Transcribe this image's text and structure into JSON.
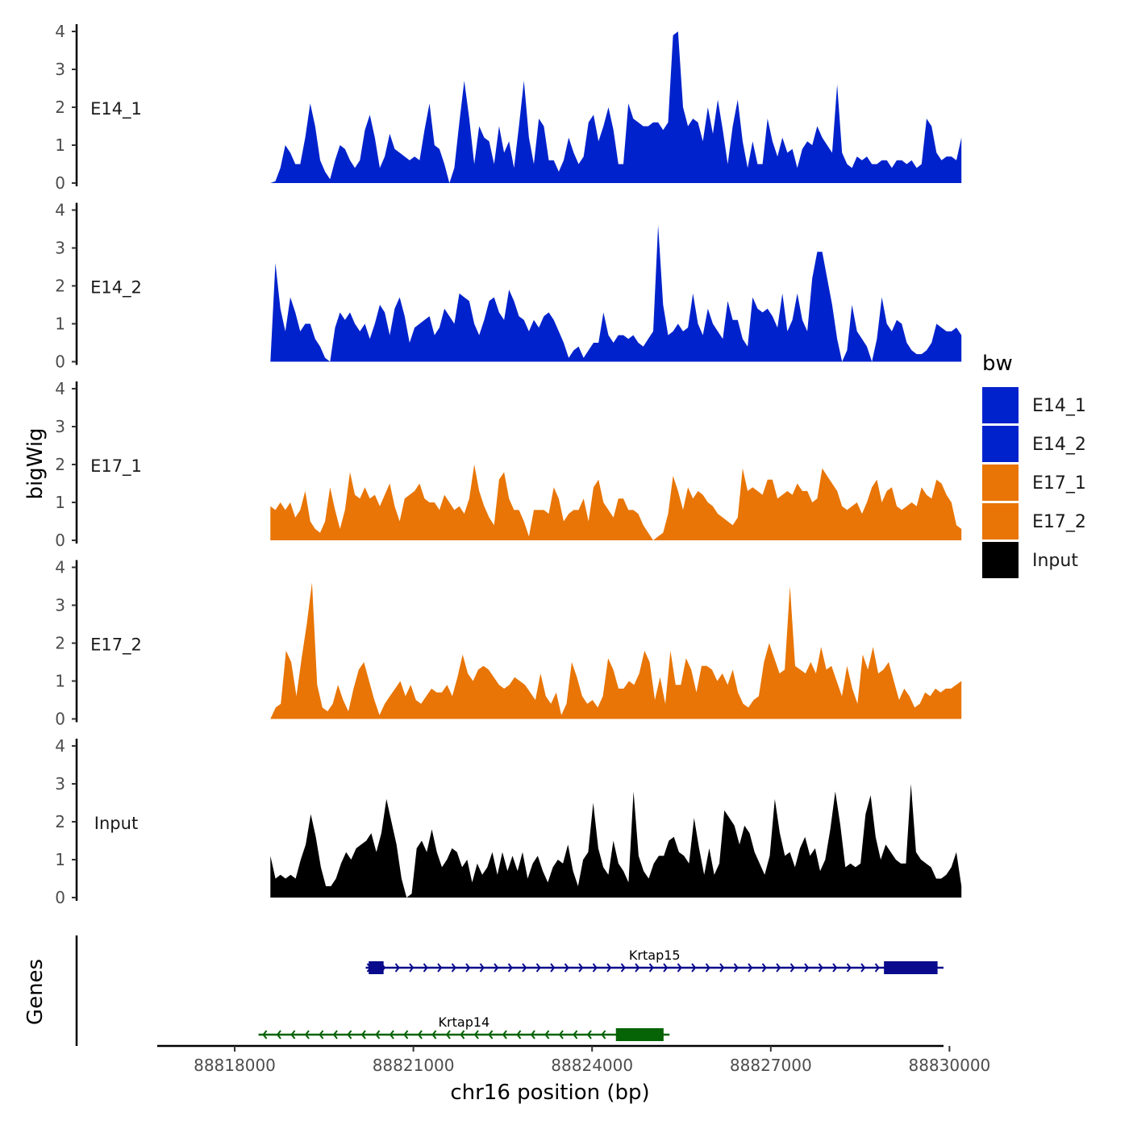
{
  "chart_data": {
    "type": "area",
    "y_axis_title": "bigWig",
    "x_axis_title": "chr16 position (bp)",
    "genes_axis_title": "Genes",
    "xlim": [
      88816700,
      88829900
    ],
    "x_ticks": [
      88818000,
      88821000,
      88824000,
      88827000,
      88830000
    ],
    "x_tick_labels": [
      "88818000",
      "88821000",
      "88824000",
      "88827000",
      "88830000"
    ],
    "signal_x_range": [
      88818600,
      88830200
    ],
    "ylim": [
      0,
      4
    ],
    "y_ticks": [
      0,
      1,
      2,
      3,
      4
    ],
    "y_tick_labels": [
      "0",
      "1",
      "2",
      "3",
      "4"
    ],
    "legend": {
      "title": "bw",
      "entries": [
        {
          "label": "E14_1",
          "color": "#0022cc"
        },
        {
          "label": "E14_2",
          "color": "#0022cc"
        },
        {
          "label": "E17_1",
          "color": "#e87505"
        },
        {
          "label": "E17_2",
          "color": "#e87505"
        },
        {
          "label": "Input",
          "color": "#000000"
        }
      ]
    },
    "series": [
      {
        "name": "E14_1",
        "color": "#0022cc",
        "values": [
          0,
          0.05,
          0.4,
          1,
          0.8,
          0.5,
          0.5,
          1.2,
          2.1,
          1.5,
          0.6,
          0.3,
          0.1,
          0.6,
          1,
          0.9,
          0.6,
          0.4,
          0.6,
          1.4,
          1.8,
          1.2,
          0.4,
          0.7,
          1.3,
          0.9,
          0.8,
          0.7,
          0.6,
          0.7,
          0.6,
          1.4,
          2.1,
          1,
          0.9,
          0.5,
          0,
          0.4,
          1.6,
          2.7,
          1.7,
          0.5,
          1.5,
          1.2,
          1.1,
          0.5,
          1.5,
          0.8,
          1.1,
          0.4,
          1.5,
          2.7,
          1.2,
          0.5,
          1.7,
          1.5,
          0.6,
          0.6,
          0.3,
          0.6,
          1.2,
          0.8,
          0.5,
          0.7,
          1.6,
          1.8,
          1.1,
          1.5,
          2,
          1.4,
          0.5,
          0.5,
          2.1,
          1.7,
          1.6,
          1.5,
          1.5,
          1.6,
          1.6,
          1.4,
          1.6,
          3.9,
          4,
          2,
          1.5,
          1.7,
          1.6,
          1.1,
          2,
          1.3,
          2.2,
          1.4,
          0.5,
          1.5,
          2.2,
          1.1,
          0.4,
          1.1,
          0.5,
          0.5,
          1.7,
          1.1,
          0.7,
          1.2,
          0.8,
          0.9,
          0.4,
          0.9,
          1.1,
          1,
          1.5,
          1.2,
          1,
          0.8,
          2.6,
          0.8,
          0.5,
          0.4,
          0.7,
          0.6,
          0.7,
          0.5,
          0.5,
          0.6,
          0.6,
          0.4,
          0.6,
          0.6,
          0.5,
          0.6,
          0.4,
          0.5,
          1.7,
          1.5,
          0.8,
          0.6,
          0.7,
          0.7,
          0.6,
          1.2
        ]
      },
      {
        "name": "E14_2",
        "color": "#0022cc",
        "values": [
          0,
          2.6,
          1.4,
          0.8,
          1.7,
          1.3,
          0.8,
          1,
          1,
          0.6,
          0.4,
          0.1,
          0,
          0.9,
          1.3,
          1.1,
          1.3,
          1,
          0.8,
          1,
          0.6,
          1,
          1.5,
          1.3,
          0.7,
          1.4,
          1.7,
          1.2,
          0.5,
          0.9,
          1,
          1.1,
          1.2,
          0.7,
          0.9,
          1.4,
          1.2,
          1,
          1.8,
          1.7,
          1.6,
          1,
          0.7,
          1.1,
          1.6,
          1.7,
          1.3,
          1.1,
          1.9,
          1.6,
          1.2,
          1.1,
          0.8,
          1.1,
          0.9,
          1.2,
          1.3,
          1.1,
          0.8,
          0.5,
          0.1,
          0.3,
          0.4,
          0.1,
          0.3,
          0.5,
          0.5,
          1.3,
          0.7,
          0.5,
          0.7,
          0.7,
          0.6,
          0.7,
          0.5,
          0.4,
          0.6,
          0.8,
          3.6,
          1.5,
          0.7,
          0.8,
          1,
          0.8,
          0.9,
          1.8,
          1,
          0.7,
          1.4,
          1,
          0.8,
          0.6,
          1.6,
          1.1,
          1.1,
          0.6,
          0.4,
          1.7,
          1.4,
          1.3,
          1.4,
          1.2,
          0.9,
          1.8,
          0.8,
          1.1,
          1.8,
          1.1,
          0.8,
          2.2,
          2.9,
          2.9,
          2.2,
          1.5,
          0.6,
          0,
          0.3,
          1.5,
          0.8,
          0.6,
          0.4,
          0,
          0.6,
          1.7,
          1,
          0.8,
          1.1,
          1,
          0.5,
          0.3,
          0.2,
          0.2,
          0.3,
          0.5,
          1,
          0.9,
          0.8,
          0.8,
          0.9,
          0.7
        ]
      },
      {
        "name": "E17_1",
        "color": "#e87505",
        "values": [
          0.9,
          0.8,
          1,
          0.8,
          1,
          0.6,
          0.8,
          1.3,
          0.5,
          0.3,
          0.2,
          0.5,
          1.4,
          0.8,
          0.3,
          0.8,
          1.8,
          1.2,
          1.1,
          1.4,
          1.1,
          1.2,
          0.9,
          1.2,
          1.5,
          0.9,
          0.5,
          1.1,
          1.2,
          1.3,
          1.5,
          1.1,
          1,
          1,
          0.8,
          1.2,
          1,
          0.8,
          0.9,
          0.7,
          1.1,
          2,
          1.3,
          0.9,
          0.6,
          0.4,
          1.6,
          1.8,
          1.1,
          0.8,
          0.8,
          0.5,
          0.1,
          0.8,
          0.8,
          0.8,
          0.7,
          1.4,
          1.1,
          0.5,
          0.7,
          0.8,
          0.8,
          1.1,
          0.5,
          1.4,
          1.6,
          1,
          0.8,
          0.6,
          1.1,
          1.1,
          0.8,
          0.8,
          0.7,
          0.4,
          0.2,
          0,
          0.1,
          0.2,
          0.7,
          1.7,
          1.3,
          0.8,
          1.4,
          1.1,
          1.3,
          1.2,
          1,
          0.9,
          0.7,
          0.6,
          0.5,
          0.4,
          0.6,
          1.9,
          1.3,
          1.4,
          1.3,
          1.2,
          1.6,
          1.6,
          1.1,
          1.2,
          1.3,
          1.2,
          1.5,
          1.3,
          1.3,
          1,
          1.1,
          1.9,
          1.7,
          1.5,
          1.3,
          0.9,
          0.8,
          0.9,
          1,
          0.7,
          1,
          1.4,
          1.6,
          1,
          1.3,
          1.4,
          0.9,
          0.8,
          0.9,
          1,
          0.9,
          1.4,
          1.2,
          1.1,
          1.6,
          1.5,
          1.2,
          1,
          0.4,
          0.3
        ]
      },
      {
        "name": "E17_2",
        "color": "#e87505",
        "values": [
          0,
          0.3,
          0.4,
          1.8,
          1.5,
          0.6,
          1.6,
          2.5,
          3.6,
          0.9,
          0.3,
          0.2,
          0.4,
          0.9,
          0.5,
          0.2,
          0.8,
          1.3,
          1.5,
          1,
          0.5,
          0.1,
          0.4,
          0.6,
          0.8,
          1,
          0.6,
          0.9,
          0.5,
          0.4,
          0.6,
          0.8,
          0.7,
          0.7,
          0.9,
          0.6,
          1.1,
          1.7,
          1.2,
          1,
          1.3,
          1.4,
          1.3,
          1.1,
          0.9,
          0.8,
          0.9,
          1.1,
          1,
          0.9,
          0.7,
          0.5,
          1.2,
          0.6,
          0.4,
          0.7,
          0.1,
          0.4,
          1.5,
          1.1,
          0.6,
          0.4,
          0.5,
          0.3,
          0.6,
          1.6,
          1.3,
          0.8,
          0.8,
          1,
          0.9,
          1.2,
          1.8,
          1.5,
          0.5,
          1.1,
          0.4,
          1.8,
          0.9,
          0.9,
          1.6,
          1.3,
          0.7,
          1.4,
          1.4,
          1.3,
          1,
          1.2,
          0.9,
          1.3,
          0.7,
          0.4,
          0.3,
          0.5,
          0.6,
          1.5,
          2,
          1.6,
          1.2,
          1.3,
          3.5,
          1.4,
          1.3,
          1.2,
          1.5,
          1.2,
          1.9,
          1.3,
          1.4,
          1,
          0.6,
          1.4,
          0.8,
          0.4,
          1.7,
          1.3,
          1.9,
          1.2,
          1.3,
          1.5,
          1,
          0.5,
          0.8,
          0.6,
          0.3,
          0.4,
          0.7,
          0.6,
          0.8,
          0.7,
          0.8,
          0.8,
          0.9,
          1
        ]
      },
      {
        "name": "Input",
        "color": "#000000",
        "values": [
          1.1,
          0.5,
          0.6,
          0.5,
          0.6,
          0.5,
          1,
          1.4,
          2.2,
          1.6,
          0.8,
          0.3,
          0.3,
          0.5,
          0.9,
          1.2,
          1,
          1.3,
          1.4,
          1.5,
          1.7,
          1.2,
          1.7,
          2.6,
          2,
          1.4,
          0.5,
          0,
          0.1,
          1.3,
          1.5,
          1.2,
          1.8,
          1.2,
          0.8,
          1,
          1.3,
          1.2,
          0.8,
          1,
          0.4,
          0.9,
          0.6,
          0.8,
          1.2,
          0.6,
          1.2,
          0.7,
          1.1,
          0.7,
          1.2,
          0.5,
          0.9,
          1.1,
          0.7,
          0.4,
          0.8,
          1,
          0.9,
          1.4,
          0.7,
          0.3,
          1,
          1.2,
          2.5,
          1.3,
          0.8,
          0.6,
          1.5,
          0.9,
          0.7,
          0.4,
          2.8,
          1.1,
          0.7,
          0.5,
          0.9,
          1.1,
          1.1,
          1.5,
          1.6,
          1.2,
          1.1,
          0.9,
          2.1,
          1.3,
          0.6,
          1.3,
          0.6,
          0.9,
          2.3,
          2.1,
          1.9,
          1.4,
          1.9,
          1.7,
          1.2,
          0.9,
          0.6,
          1.1,
          2.6,
          1.7,
          1.1,
          1.2,
          0.8,
          1.3,
          1.6,
          1.1,
          1.3,
          0.7,
          1,
          1.8,
          2.8,
          1.9,
          0.8,
          0.9,
          0.8,
          0.9,
          2.2,
          2.7,
          1.6,
          1,
          1.4,
          1.2,
          1,
          0.9,
          0.9,
          3,
          1.2,
          1,
          0.9,
          0.8,
          0.5,
          0.5,
          0.6,
          0.8,
          1.2,
          0.3
        ]
      }
    ],
    "genes": [
      {
        "name": "Krtap15",
        "strand": "+",
        "color": "#0a0a8c",
        "start": 88820200,
        "end": 88829900,
        "exons": [
          [
            88820250,
            88820500
          ],
          [
            88828900,
            88829800
          ]
        ]
      },
      {
        "name": "Krtap14",
        "strand": "-",
        "color": "#066306",
        "start": 88818400,
        "end": 88825300,
        "exons": [
          [
            88824400,
            88825200
          ]
        ]
      }
    ]
  }
}
